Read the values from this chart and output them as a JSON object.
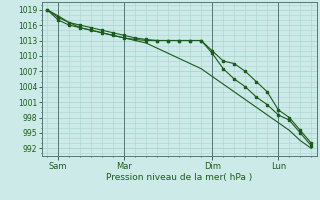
{
  "xlabel": "Pression niveau de la mer( hPa )",
  "bg_color": "#cceae7",
  "grid_color": "#aad4d0",
  "line_color": "#1a5c1a",
  "yticks": [
    992,
    995,
    998,
    1001,
    1004,
    1007,
    1010,
    1013,
    1016,
    1019
  ],
  "ylim": [
    990.5,
    1020.5
  ],
  "xlim": [
    -0.5,
    24.5
  ],
  "xtick_labels": [
    "Sam",
    "Mar",
    "Dim",
    "Lun"
  ],
  "xtick_positions": [
    1,
    7,
    15,
    21
  ],
  "vline_positions": [
    1,
    7,
    15,
    21
  ],
  "line1_x": [
    0,
    1,
    2,
    3,
    4,
    5,
    6,
    7,
    8,
    9,
    10,
    11,
    12,
    13,
    14,
    15,
    16,
    17,
    18,
    19,
    20,
    21,
    22,
    23,
    24
  ],
  "line1_y": [
    1019,
    1017.5,
    1016.5,
    1016.0,
    1015.5,
    1015.0,
    1014.5,
    1014.0,
    1013.5,
    1013.2,
    1013.0,
    1013.0,
    1013.0,
    1013.0,
    1013.0,
    1011.0,
    1009.0,
    1008.5,
    1007.0,
    1005.0,
    1003.0,
    999.5,
    998.0,
    995.5,
    993.0
  ],
  "line2_x": [
    0,
    1,
    2,
    3,
    4,
    5,
    6,
    7,
    8,
    9,
    10,
    11,
    12,
    13,
    14,
    15,
    16,
    17,
    18,
    19,
    20,
    21,
    22,
    23,
    24
  ],
  "line2_y": [
    1019,
    1017.0,
    1016.0,
    1015.5,
    1015.0,
    1014.5,
    1014.0,
    1013.5,
    1013.2,
    1013.0,
    1013.0,
    1013.0,
    1013.0,
    1013.0,
    1013.0,
    1010.5,
    1007.5,
    1005.5,
    1004.0,
    1002.0,
    1000.5,
    998.5,
    997.5,
    995.0,
    992.5
  ],
  "line3_x": [
    0,
    1,
    2,
    3,
    4,
    5,
    6,
    7,
    8,
    9,
    10,
    11,
    12,
    13,
    14,
    15,
    16,
    17,
    18,
    19,
    20,
    21,
    22,
    23,
    24
  ],
  "line3_y": [
    1019,
    1017.8,
    1016.5,
    1015.5,
    1015.0,
    1014.5,
    1014.0,
    1013.5,
    1013.0,
    1012.5,
    1011.5,
    1010.5,
    1009.5,
    1008.5,
    1007.5,
    1006.0,
    1004.5,
    1003.0,
    1001.5,
    1000.0,
    998.5,
    997.0,
    995.5,
    993.5,
    992.0
  ]
}
